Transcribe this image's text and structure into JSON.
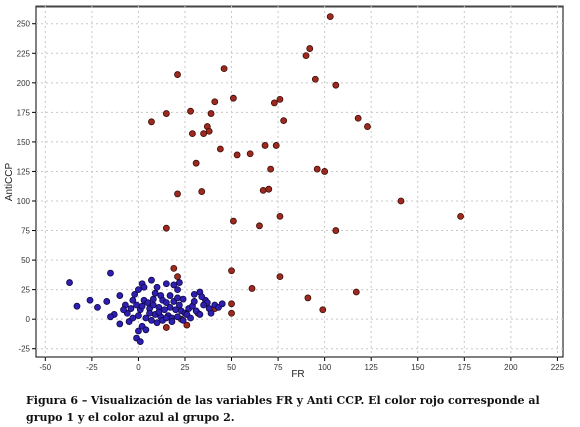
{
  "chart_data": {
    "type": "scatter",
    "xlabel": "FR",
    "ylabel": "AntiCCP",
    "xlim": [
      -55,
      228
    ],
    "ylim": [
      -32,
      265
    ],
    "xticks": [
      -50,
      -25,
      0,
      25,
      50,
      75,
      100,
      125,
      150,
      175,
      200,
      225
    ],
    "yticks": [
      -25,
      0,
      25,
      50,
      75,
      100,
      125,
      150,
      175,
      200,
      225,
      250
    ],
    "grid": true,
    "series": [
      {
        "color": "#9e2a1f",
        "edge": "#3d0c08",
        "points": [
          [
            103,
            256
          ],
          [
            92,
            229
          ],
          [
            90,
            223
          ],
          [
            46,
            212
          ],
          [
            21,
            207
          ],
          [
            106,
            198
          ],
          [
            95,
            203
          ],
          [
            76,
            186
          ],
          [
            73,
            183
          ],
          [
            51,
            187
          ],
          [
            41,
            184
          ],
          [
            28,
            176
          ],
          [
            15,
            174
          ],
          [
            7,
            167
          ],
          [
            39,
            174
          ],
          [
            118,
            170
          ],
          [
            78,
            168
          ],
          [
            123,
            163
          ],
          [
            37,
            163
          ],
          [
            29,
            157
          ],
          [
            35,
            157
          ],
          [
            38,
            159
          ],
          [
            68,
            147
          ],
          [
            74,
            147
          ],
          [
            44,
            144
          ],
          [
            60,
            140
          ],
          [
            53,
            139
          ],
          [
            31,
            132
          ],
          [
            71,
            127
          ],
          [
            96,
            127
          ],
          [
            100,
            125
          ],
          [
            67,
            109
          ],
          [
            34,
            108
          ],
          [
            21,
            106
          ],
          [
            70,
            110
          ],
          [
            141,
            100
          ],
          [
            76,
            87
          ],
          [
            173,
            87
          ],
          [
            51,
            83
          ],
          [
            15,
            77
          ],
          [
            65,
            79
          ],
          [
            106,
            75
          ],
          [
            19,
            43
          ],
          [
            50,
            41
          ],
          [
            21,
            36
          ],
          [
            76,
            36
          ],
          [
            61,
            26
          ],
          [
            117,
            23
          ],
          [
            91,
            18
          ],
          [
            50,
            13
          ],
          [
            99,
            8
          ],
          [
            41,
            9
          ],
          [
            32,
            5
          ],
          [
            50,
            5
          ],
          [
            15,
            -7
          ],
          [
            26,
            -5
          ],
          [
            23,
            0
          ]
        ]
      },
      {
        "color": "#2f1fb0",
        "edge": "#0f0845",
        "points": [
          [
            -37,
            31
          ],
          [
            -15,
            39
          ],
          [
            -26,
            16
          ],
          [
            -17,
            15
          ],
          [
            -22,
            10
          ],
          [
            -33,
            11
          ],
          [
            -10,
            20
          ],
          [
            -13,
            4
          ],
          [
            -7,
            12
          ],
          [
            -4,
            9
          ],
          [
            -3,
            16
          ],
          [
            -6,
            5
          ],
          [
            -15,
            2
          ],
          [
            -10,
            -4
          ],
          [
            -5,
            -2
          ],
          [
            0,
            25
          ],
          [
            -2,
            21
          ],
          [
            2,
            30
          ],
          [
            3,
            27
          ],
          [
            7,
            33
          ],
          [
            10,
            27
          ],
          [
            15,
            30
          ],
          [
            19,
            29
          ],
          [
            22,
            31
          ],
          [
            21,
            25
          ],
          [
            24,
            17
          ],
          [
            30,
            21
          ],
          [
            33,
            23
          ],
          [
            36,
            16
          ],
          [
            37,
            14
          ],
          [
            41,
            12
          ],
          [
            43,
            10
          ],
          [
            45,
            13
          ],
          [
            9,
            22
          ],
          [
            12,
            20
          ],
          [
            17,
            20
          ],
          [
            13,
            16
          ],
          [
            15,
            14
          ],
          [
            19,
            15
          ],
          [
            21,
            18
          ],
          [
            3,
            16
          ],
          [
            5,
            14
          ],
          [
            6,
            9
          ],
          [
            1,
            8
          ],
          [
            -1,
            12
          ],
          [
            2,
            11
          ],
          [
            8,
            12
          ],
          [
            11,
            10
          ],
          [
            14,
            8
          ],
          [
            17,
            10
          ],
          [
            20,
            8
          ],
          [
            23,
            7
          ],
          [
            25,
            5
          ],
          [
            27,
            9
          ],
          [
            29,
            11
          ],
          [
            31,
            7
          ],
          [
            33,
            4
          ],
          [
            35,
            12
          ],
          [
            38,
            9
          ],
          [
            9,
            4
          ],
          [
            12,
            2
          ],
          [
            16,
            3
          ],
          [
            18,
            1
          ],
          [
            21,
            2
          ],
          [
            24,
            -1
          ],
          [
            26,
            4
          ],
          [
            28,
            1
          ],
          [
            4,
            1
          ],
          [
            7,
            -1
          ],
          [
            10,
            -3
          ],
          [
            13,
            -1
          ],
          [
            15,
            1
          ],
          [
            2,
            -6
          ],
          [
            0,
            -10
          ],
          [
            4,
            -9
          ],
          [
            -1,
            -16
          ],
          [
            1,
            -19
          ],
          [
            6,
            5
          ],
          [
            0,
            3
          ],
          [
            -3,
            1
          ],
          [
            30,
            15
          ],
          [
            34,
            19
          ],
          [
            39,
            5
          ],
          [
            8,
            17
          ],
          [
            18,
            -2
          ],
          [
            -8,
            8
          ],
          [
            11,
            6
          ],
          [
            22,
            12
          ]
        ]
      }
    ]
  },
  "caption": {
    "label": "Figura 6 –",
    "text": "Visualización de las variables FR y Anti CCP. El color rojo corresponde al grupo 1 y el color azul al grupo 2."
  }
}
